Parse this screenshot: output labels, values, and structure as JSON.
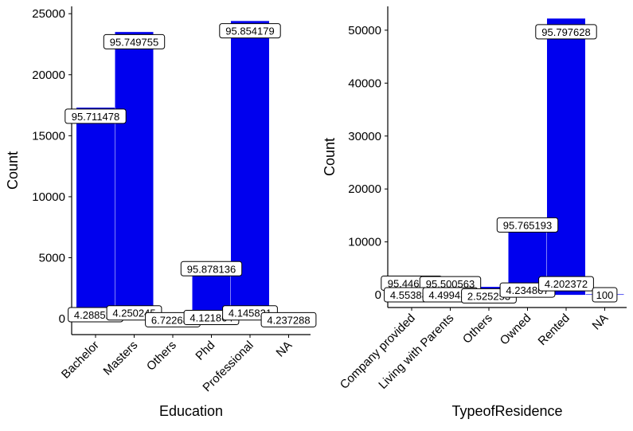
{
  "chart_data": [
    {
      "type": "bar",
      "xlabel": "Education",
      "ylabel": "Count",
      "categories": [
        "Bachelor",
        "Masters",
        "Others",
        "Phd",
        "Professional",
        "NA"
      ],
      "ylim": [
        -1300,
        25600
      ],
      "yticks": [
        0,
        5000,
        10000,
        15000,
        20000,
        25000
      ],
      "grid": false,
      "legend": "none",
      "bar_color": "#0000ee",
      "series": [
        {
          "values": [
            17300,
            23500,
            80,
            4400,
            24400,
            0
          ]
        },
        {
          "values": [
            770,
            1050,
            0,
            190,
            1050,
            0
          ]
        }
      ],
      "labels": [
        {
          "cat": 0,
          "y": 16600,
          "text": "95.711478"
        },
        {
          "cat": 1,
          "y": 22700,
          "text": "95.749755"
        },
        {
          "cat": 3,
          "y": 4100,
          "text": "95.878136"
        },
        {
          "cat": 4,
          "y": 23600,
          "text": "95.854179"
        },
        {
          "cat": 0,
          "y": 330,
          "text": "4.288522"
        },
        {
          "cat": 1,
          "y": 480,
          "text": "4.250245"
        },
        {
          "cat": 2,
          "y": -80,
          "text": "6.722689"
        },
        {
          "cat": 3,
          "y": 100,
          "text": "4.121864"
        },
        {
          "cat": 4,
          "y": 480,
          "text": "4.145821"
        },
        {
          "cat": 5,
          "y": -80,
          "text": "4.237288"
        }
      ]
    },
    {
      "type": "bar",
      "xlabel": "TypeofResidence",
      "ylabel": "Count",
      "categories": [
        "Company provided",
        "Living with Parents",
        "Others",
        "Owned",
        "Rented",
        "NA"
      ],
      "ylim": [
        -2400,
        54500
      ],
      "yticks": [
        0,
        10000,
        20000,
        30000,
        40000,
        50000
      ],
      "grid": false,
      "legend": "none",
      "bar_color": "#0000ee",
      "series": [
        {
          "values": [
            2300,
            2200,
            1500,
            13500,
            52200,
            100
          ]
        },
        {
          "values": [
            0,
            0,
            0,
            2200,
            2200,
            0
          ]
        }
      ],
      "labels": [
        {
          "cat": 0,
          "y": 2200,
          "text": "95.446115"
        },
        {
          "cat": 1,
          "y": 2100,
          "text": "95.500563"
        },
        {
          "cat": 3,
          "y": 13200,
          "text": "95.765193"
        },
        {
          "cat": 4,
          "y": 49700,
          "text": "95.797628"
        },
        {
          "cat": 0,
          "y": 0,
          "text": "4.553885"
        },
        {
          "cat": 1,
          "y": 0,
          "text": "4.499437"
        },
        {
          "cat": 2,
          "y": -200,
          "text": "2.525253"
        },
        {
          "cat": 3,
          "y": 900,
          "text": "4.234807"
        },
        {
          "cat": 4,
          "y": 2100,
          "text": "4.202372"
        },
        {
          "cat": 5,
          "y": 0,
          "text": "100"
        }
      ]
    }
  ]
}
